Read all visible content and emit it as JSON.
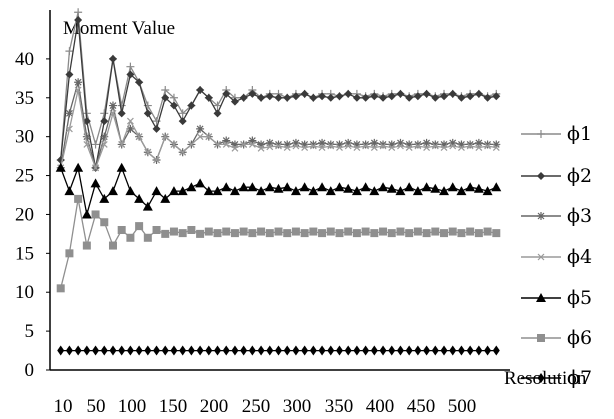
{
  "chart_data": {
    "type": "line",
    "title": "",
    "ylabel": "Moment Value",
    "xlabel": "Resolution",
    "xlim": [
      0,
      520
    ],
    "ylim": [
      0,
      45
    ],
    "grid": false,
    "legend_position": "right",
    "yticks": [
      0,
      5,
      10,
      15,
      20,
      25,
      30,
      35,
      40
    ],
    "xtick_labels": [
      "10",
      "50",
      "100",
      "150",
      "200",
      "250",
      "300",
      "350",
      "400",
      "450",
      "500"
    ],
    "series": [
      {
        "name": "ϕ1",
        "color": "#8a8a8a",
        "marker": "plus",
        "x": [
          10,
          20,
          30,
          40,
          50,
          60,
          70,
          80,
          90,
          100,
          110,
          120,
          130,
          140,
          150,
          160,
          170,
          180,
          190,
          200,
          210,
          220,
          230,
          240,
          250,
          260,
          270,
          280,
          290,
          300,
          310,
          320,
          330,
          340,
          350,
          360,
          370,
          380,
          390,
          400,
          410,
          420,
          430,
          440,
          450,
          460,
          470,
          480,
          490,
          500,
          510
        ],
        "values": [
          27,
          41,
          46,
          33,
          29,
          33,
          40,
          34,
          39,
          37,
          34,
          32,
          36,
          35,
          33,
          34,
          36,
          35,
          34,
          36,
          35,
          35,
          36,
          35,
          35.5,
          35.5,
          35,
          35.5,
          35.5,
          35,
          35.5,
          35.5,
          35.2,
          35.5,
          35.5,
          35.2,
          35.5,
          35.2,
          35.5,
          35.5,
          35.2,
          35.5,
          35.5,
          35.2,
          35.5,
          35.5,
          35.2,
          35.5,
          35.5,
          35.2,
          35.5
        ]
      },
      {
        "name": "ϕ2",
        "color": "#3a3a3a",
        "marker": "diamond",
        "x": [
          10,
          20,
          30,
          40,
          50,
          60,
          70,
          80,
          90,
          100,
          110,
          120,
          130,
          140,
          150,
          160,
          170,
          180,
          190,
          200,
          210,
          220,
          230,
          240,
          250,
          260,
          270,
          280,
          290,
          300,
          310,
          320,
          330,
          340,
          350,
          360,
          370,
          380,
          390,
          400,
          410,
          420,
          430,
          440,
          450,
          460,
          470,
          480,
          490,
          500,
          510
        ],
        "values": [
          27,
          38,
          45,
          32,
          26,
          32,
          40,
          33,
          38,
          37,
          33,
          31,
          35,
          34,
          32,
          34,
          36,
          35,
          33,
          35.5,
          34.5,
          35,
          35.5,
          35,
          35.2,
          35,
          35,
          35.2,
          35.5,
          35,
          35.2,
          35,
          35.2,
          35.5,
          35,
          35,
          35.2,
          35,
          35.2,
          35.5,
          35,
          35.2,
          35.5,
          35,
          35.2,
          35.5,
          35,
          35.2,
          35.5,
          35,
          35.2
        ]
      },
      {
        "name": "ϕ3",
        "color": "#666666",
        "marker": "asterisk",
        "x": [
          10,
          20,
          30,
          40,
          50,
          60,
          70,
          80,
          90,
          100,
          110,
          120,
          130,
          140,
          150,
          160,
          170,
          180,
          190,
          200,
          210,
          220,
          230,
          240,
          250,
          260,
          270,
          280,
          290,
          300,
          310,
          320,
          330,
          340,
          350,
          360,
          370,
          380,
          390,
          400,
          410,
          420,
          430,
          440,
          450,
          460,
          470,
          480,
          490,
          500,
          510
        ],
        "values": [
          26,
          33,
          37,
          30,
          26,
          30,
          34,
          29,
          31,
          30,
          28,
          27,
          30,
          29,
          28,
          29,
          31,
          30,
          29,
          29.5,
          29,
          29,
          29.5,
          29,
          29.2,
          29,
          29,
          29.2,
          29,
          29,
          29.2,
          29,
          29,
          29.2,
          29,
          29,
          29.2,
          29,
          29,
          29.2,
          29,
          29,
          29.2,
          29,
          29,
          29.2,
          29,
          29,
          29.2,
          29,
          29
        ]
      },
      {
        "name": "ϕ4",
        "color": "#9a9a9a",
        "marker": "x",
        "x": [
          10,
          20,
          30,
          40,
          50,
          60,
          70,
          80,
          90,
          100,
          110,
          120,
          130,
          140,
          150,
          160,
          170,
          180,
          190,
          200,
          210,
          220,
          230,
          240,
          250,
          260,
          270,
          280,
          290,
          300,
          310,
          320,
          330,
          340,
          350,
          360,
          370,
          380,
          390,
          400,
          410,
          420,
          430,
          440,
          450,
          460,
          470,
          480,
          490,
          500,
          510
        ],
        "values": [
          26,
          31,
          36,
          29,
          26,
          29,
          33,
          29,
          32,
          30,
          28,
          27,
          30,
          29,
          28,
          29,
          30,
          30,
          29,
          29,
          28.5,
          29,
          29,
          28.5,
          28.7,
          28.8,
          28.6,
          28.8,
          28.6,
          28.8,
          28.6,
          28.8,
          28.6,
          28.8,
          28.6,
          28.8,
          28.6,
          28.8,
          28.6,
          28.8,
          28.6,
          28.8,
          28.6,
          28.8,
          28.6,
          28.8,
          28.6,
          28.8,
          28.6,
          28.8,
          28.6
        ]
      },
      {
        "name": "ϕ5",
        "color": "#000000",
        "marker": "triangle",
        "x": [
          10,
          20,
          30,
          40,
          50,
          60,
          70,
          80,
          90,
          100,
          110,
          120,
          130,
          140,
          150,
          160,
          170,
          180,
          190,
          200,
          210,
          220,
          230,
          240,
          250,
          260,
          270,
          280,
          290,
          300,
          310,
          320,
          330,
          340,
          350,
          360,
          370,
          380,
          390,
          400,
          410,
          420,
          430,
          440,
          450,
          460,
          470,
          480,
          490,
          500,
          510
        ],
        "values": [
          26,
          23,
          26,
          20,
          24,
          22,
          23,
          26,
          23,
          22,
          21,
          23,
          22,
          23,
          23,
          23.5,
          24,
          23,
          23,
          23.5,
          23,
          23.5,
          23.5,
          23,
          23.5,
          23.3,
          23.5,
          23,
          23.5,
          23,
          23.5,
          23,
          23.5,
          23.3,
          23,
          23.5,
          23,
          23.5,
          23.3,
          23,
          23.5,
          23,
          23.5,
          23.3,
          23,
          23.5,
          23,
          23.5,
          23.3,
          23,
          23.5
        ]
      },
      {
        "name": "ϕ6",
        "color": "#8f8f8f",
        "marker": "square",
        "x": [
          10,
          20,
          30,
          40,
          50,
          60,
          70,
          80,
          90,
          100,
          110,
          120,
          130,
          140,
          150,
          160,
          170,
          180,
          190,
          200,
          210,
          220,
          230,
          240,
          250,
          260,
          270,
          280,
          290,
          300,
          310,
          320,
          330,
          340,
          350,
          360,
          370,
          380,
          390,
          400,
          410,
          420,
          430,
          440,
          450,
          460,
          470,
          480,
          490,
          500,
          510
        ],
        "values": [
          10.5,
          15,
          22,
          16,
          20,
          19,
          16,
          18,
          17,
          18.5,
          17,
          18,
          17.5,
          17.8,
          17.6,
          18,
          17.5,
          17.8,
          17.6,
          17.8,
          17.6,
          17.8,
          17.6,
          17.8,
          17.6,
          17.8,
          17.6,
          17.8,
          17.6,
          17.8,
          17.6,
          17.8,
          17.6,
          17.8,
          17.6,
          17.8,
          17.6,
          17.8,
          17.6,
          17.8,
          17.6,
          17.8,
          17.6,
          17.8,
          17.6,
          17.8,
          17.6,
          17.8,
          17.6,
          17.8,
          17.6
        ]
      },
      {
        "name": "ϕ7",
        "color": "#000000",
        "marker": "filled-diamond",
        "x": [
          10,
          20,
          30,
          40,
          50,
          60,
          70,
          80,
          90,
          100,
          110,
          120,
          130,
          140,
          150,
          160,
          170,
          180,
          190,
          200,
          210,
          220,
          230,
          240,
          250,
          260,
          270,
          280,
          290,
          300,
          310,
          320,
          330,
          340,
          350,
          360,
          370,
          380,
          390,
          400,
          410,
          420,
          430,
          440,
          450,
          460,
          470,
          480,
          490,
          500,
          510
        ],
        "values": [
          2.5,
          2.5,
          2.5,
          2.5,
          2.5,
          2.5,
          2.5,
          2.5,
          2.5,
          2.5,
          2.5,
          2.5,
          2.5,
          2.5,
          2.5,
          2.5,
          2.5,
          2.5,
          2.5,
          2.5,
          2.5,
          2.5,
          2.5,
          2.5,
          2.5,
          2.5,
          2.5,
          2.5,
          2.5,
          2.5,
          2.5,
          2.5,
          2.5,
          2.5,
          2.5,
          2.5,
          2.5,
          2.5,
          2.5,
          2.5,
          2.5,
          2.5,
          2.5,
          2.5,
          2.5,
          2.5,
          2.5,
          2.5,
          2.5,
          2.5,
          2.5
        ]
      }
    ]
  }
}
